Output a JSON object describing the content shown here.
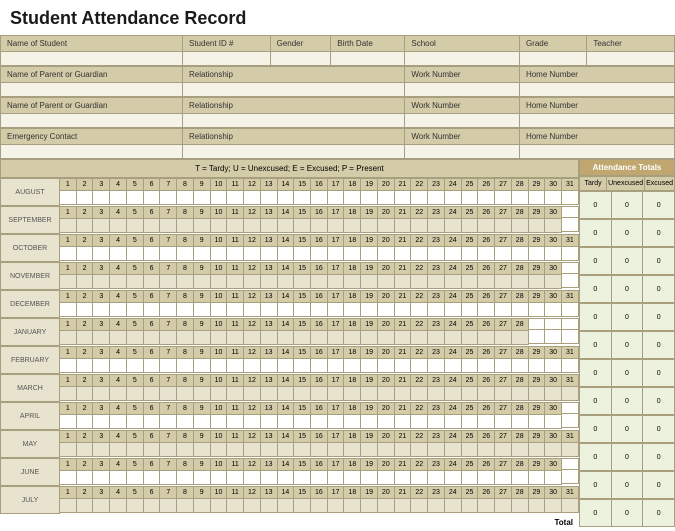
{
  "title": "Student Attendance Record",
  "info_rows": [
    {
      "cells": [
        {
          "label": "Name of Student",
          "width": "27%"
        },
        {
          "label": "Student ID #",
          "width": "13%"
        },
        {
          "label": "Gender",
          "width": "9%"
        },
        {
          "label": "Birth Date",
          "width": "11%"
        },
        {
          "label": "School",
          "width": "17%"
        },
        {
          "label": "Grade",
          "width": "10%"
        },
        {
          "label": "Teacher",
          "width": "13%"
        }
      ]
    },
    {
      "cells": [
        {
          "label": "Name of Parent or Guardian",
          "width": "27%"
        },
        {
          "label": "Relationship",
          "width": "33%"
        },
        {
          "label": "Work Number",
          "width": "17%"
        },
        {
          "label": "Home Number",
          "width": "23%"
        }
      ]
    },
    {
      "cells": [
        {
          "label": "Name of Parent or Guardian",
          "width": "27%"
        },
        {
          "label": "Relationship",
          "width": "33%"
        },
        {
          "label": "Work Number",
          "width": "17%"
        },
        {
          "label": "Home Number",
          "width": "23%"
        }
      ]
    },
    {
      "cells": [
        {
          "label": "Emergency Contact",
          "width": "27%"
        },
        {
          "label": "Relationship",
          "width": "33%"
        },
        {
          "label": "Work Number",
          "width": "17%"
        },
        {
          "label": "Home Number",
          "width": "23%"
        }
      ]
    }
  ],
  "legend": "T = Tardy; U = Unexcused; E = Excused; P = Present",
  "totals_header": "Attendance Totals",
  "totals_columns": [
    "Tardy",
    "Unexcused",
    "Excused"
  ],
  "months": [
    {
      "name": "AUGUST",
      "days": 31,
      "alt": false
    },
    {
      "name": "SEPTEMBER",
      "days": 30,
      "alt": true
    },
    {
      "name": "OCTOBER",
      "days": 31,
      "alt": false
    },
    {
      "name": "NOVEMBER",
      "days": 30,
      "alt": true
    },
    {
      "name": "DECEMBER",
      "days": 31,
      "alt": false
    },
    {
      "name": "JANUARY",
      "days": 28,
      "alt": true
    },
    {
      "name": "FEBRUARY",
      "days": 31,
      "alt": false
    },
    {
      "name": "MARCH",
      "days": 31,
      "alt": true
    },
    {
      "name": "APRIL",
      "days": 30,
      "alt": false
    },
    {
      "name": "MAY",
      "days": 31,
      "alt": true
    },
    {
      "name": "JUNE",
      "days": 30,
      "alt": false
    },
    {
      "name": "JULY",
      "days": 31,
      "alt": true
    }
  ],
  "total_label": "Total",
  "zero": "0",
  "colors": {
    "header_bg": "#d4cba8",
    "border": "#a89f7e",
    "light_bg": "#e8e3cf",
    "totals_header_bg": "#bfa76f",
    "totals_cell_bg": "#edf2df"
  }
}
